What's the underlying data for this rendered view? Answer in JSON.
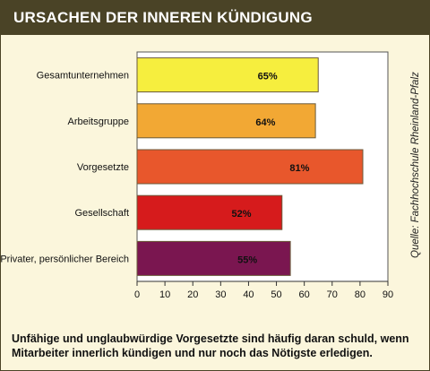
{
  "title": "URSACHEN DER INNEREN KÜNDIGUNG",
  "source": "Quelle: Fachhochschule Rheinland-Pfalz",
  "caption": {
    "line1": "Unfähige und unglaubwürdige Vorgesetzte sind häufig daran schuld, wenn",
    "line2": "Mitarbeiter innerlich kündigen und nur noch das Nötigste erledigen."
  },
  "colors": {
    "header": "#4a4326",
    "background": "#fbf6dc"
  },
  "chart_data": {
    "type": "bar",
    "orientation": "horizontal",
    "categories": [
      "Gesamtunternehmen",
      "Arbeitsgruppe",
      "Vorgesetzte",
      "Gesellschaft",
      "Privater, persönlicher Bereich"
    ],
    "values": [
      65,
      64,
      81,
      52,
      55
    ],
    "value_labels": [
      "65%",
      "64%",
      "81%",
      "52%",
      "55%"
    ],
    "colors": [
      "#f6ee3e",
      "#f2a834",
      "#e8572c",
      "#d61b1c",
      "#7a1650"
    ],
    "xlim": [
      0,
      90
    ],
    "xticks": [
      0,
      10,
      20,
      30,
      40,
      50,
      60,
      70,
      80,
      90
    ],
    "grid": false
  }
}
